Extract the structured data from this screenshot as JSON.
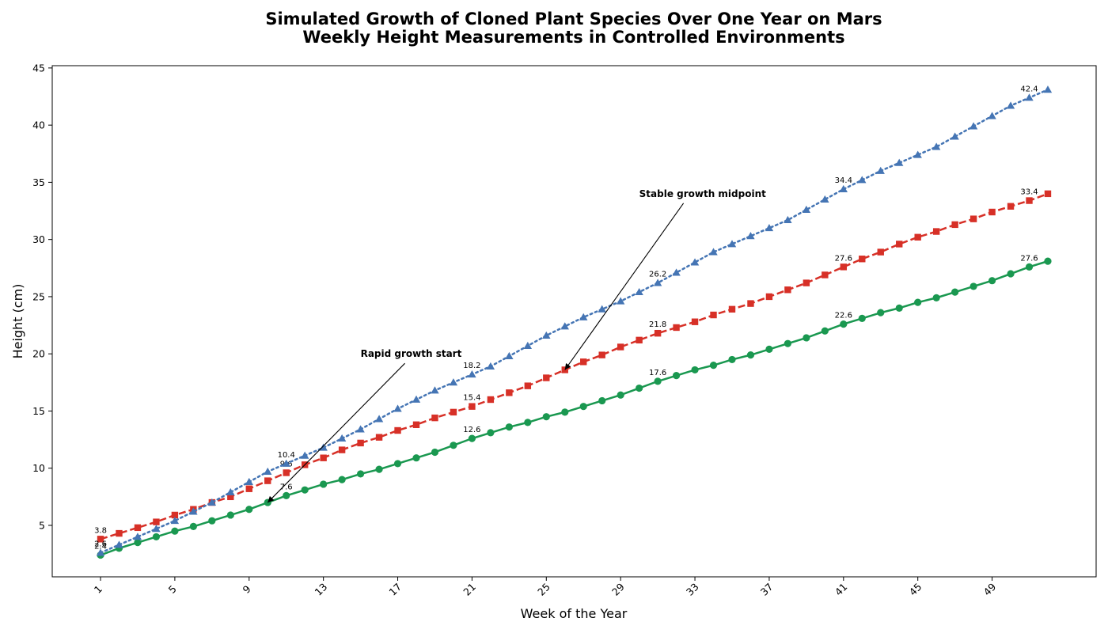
{
  "chart_data": {
    "type": "line",
    "title_line1": "Simulated Growth of Cloned Plant Species Over One Year on Mars",
    "title_line2": "Weekly Height Measurements in Controlled Environments",
    "xlabel": "Week of the Year",
    "ylabel": "Height (cm)",
    "xlim": [
      -1.6,
      54.6
    ],
    "ylim": [
      0.5,
      45.2
    ],
    "x_ticks": [
      1,
      5,
      9,
      13,
      17,
      21,
      25,
      29,
      33,
      37,
      41,
      45,
      49
    ],
    "y_ticks": [
      5,
      10,
      15,
      20,
      25,
      30,
      35,
      40,
      45
    ],
    "grid": false,
    "x": [
      1,
      2,
      3,
      4,
      5,
      6,
      7,
      8,
      9,
      10,
      11,
      12,
      13,
      14,
      15,
      16,
      17,
      18,
      19,
      20,
      21,
      22,
      23,
      24,
      25,
      26,
      27,
      28,
      29,
      30,
      31,
      32,
      33,
      34,
      35,
      36,
      37,
      38,
      39,
      40,
      41,
      42,
      43,
      44,
      45,
      46,
      47,
      48,
      49,
      50,
      51,
      52
    ],
    "series": [
      {
        "color": "#1a9850",
        "linestyle": "solid",
        "marker": "circle",
        "values": [
          2.4,
          3.0,
          3.5,
          4.0,
          4.5,
          4.9,
          5.4,
          5.9,
          6.4,
          7.0,
          7.6,
          8.1,
          8.6,
          9.0,
          9.5,
          9.9,
          10.4,
          10.9,
          11.4,
          12.0,
          12.6,
          13.1,
          13.6,
          14.0,
          14.5,
          14.9,
          15.4,
          15.9,
          16.4,
          17.0,
          17.6,
          18.1,
          18.6,
          19.0,
          19.5,
          19.9,
          20.4,
          20.9,
          21.4,
          22.0,
          22.6,
          23.1,
          23.6,
          24.0,
          24.5,
          24.9,
          25.4,
          25.9,
          26.4,
          27.0,
          27.6,
          28.1
        ],
        "labels": [
          {
            "x": 1,
            "text": "2.4"
          },
          {
            "x": 11,
            "text": "7.6"
          },
          {
            "x": 21,
            "text": "12.6"
          },
          {
            "x": 31,
            "text": "17.6"
          },
          {
            "x": 41,
            "text": "22.6"
          },
          {
            "x": 51,
            "text": "27.6"
          }
        ]
      },
      {
        "color": "#d73027",
        "linestyle": "dashed",
        "marker": "square",
        "values": [
          3.8,
          4.3,
          4.8,
          5.3,
          5.9,
          6.4,
          7.0,
          7.5,
          8.2,
          8.9,
          9.6,
          10.3,
          10.9,
          11.6,
          12.2,
          12.7,
          13.3,
          13.8,
          14.4,
          14.9,
          15.4,
          16.0,
          16.6,
          17.2,
          17.9,
          18.6,
          19.3,
          19.9,
          20.6,
          21.2,
          21.8,
          22.3,
          22.8,
          23.4,
          23.9,
          24.4,
          25.0,
          25.6,
          26.2,
          26.9,
          27.6,
          28.3,
          28.9,
          29.6,
          30.2,
          30.7,
          31.3,
          31.8,
          32.4,
          32.9,
          33.4,
          34.0
        ],
        "labels": [
          {
            "x": 1,
            "text": "3.8"
          },
          {
            "x": 11,
            "text": "9.6"
          },
          {
            "x": 21,
            "text": "15.4"
          },
          {
            "x": 31,
            "text": "21.8"
          },
          {
            "x": 41,
            "text": "27.6"
          },
          {
            "x": 51,
            "text": "33.4"
          }
        ]
      },
      {
        "color": "#4575b4",
        "linestyle": "dotted",
        "marker": "triangle",
        "values": [
          2.6,
          3.3,
          4.0,
          4.7,
          5.4,
          6.2,
          7.0,
          7.9,
          8.8,
          9.7,
          10.4,
          11.1,
          11.8,
          12.6,
          13.4,
          14.3,
          15.2,
          16.0,
          16.8,
          17.5,
          18.2,
          18.9,
          19.8,
          20.7,
          21.6,
          22.4,
          23.2,
          23.9,
          24.6,
          25.4,
          26.2,
          27.1,
          28.0,
          28.9,
          29.6,
          30.3,
          31.0,
          31.7,
          32.6,
          33.5,
          34.4,
          35.2,
          36.0,
          36.7,
          37.4,
          38.1,
          39.0,
          39.9,
          40.8,
          41.7,
          42.4,
          43.1
        ],
        "labels": [
          {
            "x": 1,
            "text": "2.6"
          },
          {
            "x": 11,
            "text": "10.4"
          },
          {
            "x": 21,
            "text": "18.2"
          },
          {
            "x": 31,
            "text": "26.2"
          },
          {
            "x": 41,
            "text": "34.4"
          },
          {
            "x": 51,
            "text": "42.4"
          }
        ]
      }
    ],
    "annotations": [
      {
        "text": "Rapid growth start",
        "text_x": 15,
        "text_y": 20.0,
        "arrow_x": 10,
        "arrow_y": 7.0
      },
      {
        "text": "Stable growth midpoint",
        "text_x": 30,
        "text_y": 34.0,
        "arrow_x": 26,
        "arrow_y": 18.6
      }
    ]
  }
}
